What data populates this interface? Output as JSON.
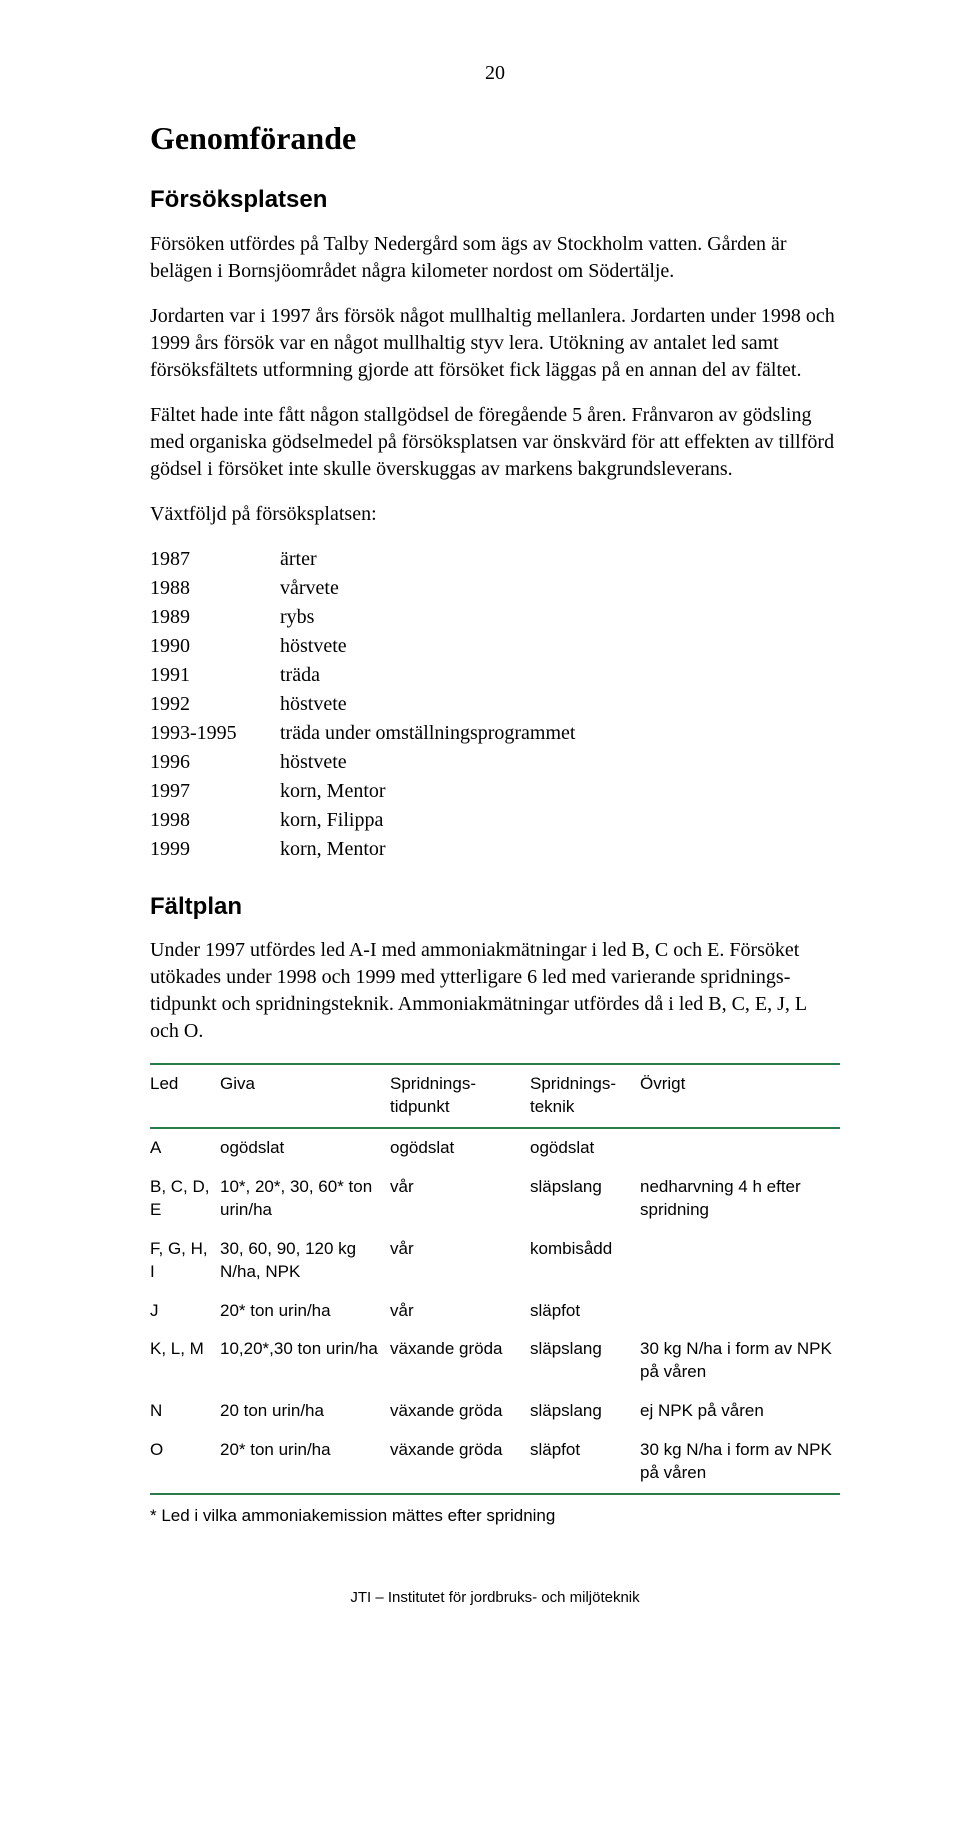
{
  "page_number": "20",
  "title": "Genomförande",
  "section1": {
    "heading": "Försöksplatsen",
    "p1": "Försöken utfördes på Talby Nedergård som ägs av Stockholm vatten. Gården är belägen i Bornsjöområdet några kilometer nordost om Södertälje.",
    "p2": "Jordarten var i 1997 års försök något mullhaltig mellanlera. Jordarten under 1998 och 1999 års försök var en något mullhaltig styv lera. Utökning av antalet led samt försöksfältets utformning gjorde att försöket fick läggas på en annan del av fältet.",
    "p3": "Fältet hade inte fått någon stallgödsel de föregående 5 åren. Frånvaron av gödsling med organiska gödselmedel på försöksplatsen var önskvärd för att effekten av tillförd gödsel i försöket inte skulle överskuggas av markens bakgrundsleverans.",
    "p4": "Växtföljd på försöksplatsen:",
    "rotation": [
      {
        "year": "1987",
        "crop": "ärter"
      },
      {
        "year": "1988",
        "crop": "vårvete"
      },
      {
        "year": "1989",
        "crop": "rybs"
      },
      {
        "year": "1990",
        "crop": "höstvete"
      },
      {
        "year": "1991",
        "crop": "träda"
      },
      {
        "year": "1992",
        "crop": "höstvete"
      },
      {
        "year": "1993-1995",
        "crop": "träda under omställningsprogrammet"
      },
      {
        "year": "1996",
        "crop": "höstvete"
      },
      {
        "year": "1997",
        "crop": "korn, Mentor"
      },
      {
        "year": "1998",
        "crop": "korn, Filippa"
      },
      {
        "year": "1999",
        "crop": "korn, Mentor"
      }
    ]
  },
  "section2": {
    "heading": "Fältplan",
    "p1": "Under 1997 utfördes led A-I med ammoniakmätningar i led B, C och E. Försöket utökades under 1998 och 1999 med ytterligare 6 led med varierande spridnings-tidpunkt och spridningsteknik. Ammoniakmätningar utfördes då i led B, C, E, J, L och O.",
    "table": {
      "columns": [
        "Led",
        "Giva",
        "Spridnings-\ntidpunkt",
        "Spridnings-\nteknik",
        "Övrigt"
      ],
      "rows": [
        {
          "led": "A",
          "giva": "ogödslat",
          "tid": "ogödslat",
          "tek": "ogödslat",
          "ovr": ""
        },
        {
          "led": "B, C, D, E",
          "giva": "10*, 20*, 30, 60* ton urin/ha",
          "tid": "vår",
          "tek": "släpslang",
          "ovr": "nedharvning 4 h efter spridning"
        },
        {
          "led": "F, G, H, I",
          "giva": "30, 60, 90, 120 kg N/ha, NPK",
          "tid": "vår",
          "tek": "kombisådd",
          "ovr": ""
        },
        {
          "led": "J",
          "giva": "20* ton urin/ha",
          "tid": "vår",
          "tek": "släpfot",
          "ovr": ""
        },
        {
          "led": "K, L, M",
          "giva": "10,20*,30 ton urin/ha",
          "tid": "växande gröda",
          "tek": "släpslang",
          "ovr": "30 kg N/ha i form av NPK på våren"
        },
        {
          "led": "N",
          "giva": "20 ton urin/ha",
          "tid": "växande gröda",
          "tek": "släpslang",
          "ovr": "ej NPK på våren"
        },
        {
          "led": "O",
          "giva": "20* ton urin/ha",
          "tid": "växande gröda",
          "tek": "släpfot",
          "ovr": "30 kg N/ha i form av NPK på våren"
        }
      ],
      "footnote": "* Led i vilka ammoniakemission mättes efter spridning"
    }
  },
  "footer": "JTI – Institutet för jordbruks- och miljöteknik",
  "colors": {
    "text": "#000000",
    "background": "#ffffff",
    "table_border": "#2a7a4a"
  },
  "typography": {
    "body_font": "Times New Roman",
    "heading2_font": "Arial",
    "table_font": "Arial",
    "body_size_pt": 15,
    "h1_size_pt": 24,
    "h2_size_pt": 18,
    "table_size_pt": 13
  }
}
